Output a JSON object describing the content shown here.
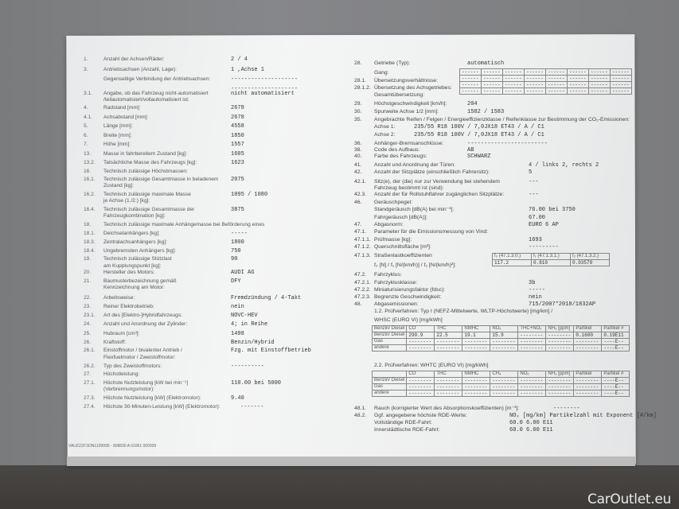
{
  "left": [
    {
      "num": "1.",
      "label": "Anzahl der Achsen/Räder:",
      "value": "2  / 4"
    },
    {
      "num": "3.",
      "label": "Antriebsachsen (Anzahl, Lage):",
      "value": "1 ,Achse 1"
    },
    {
      "num": "",
      "label": "Gegenseitige Verbindung der Antriebsachsen:",
      "value": "--------------------"
    },
    {
      "num": "",
      "label": "",
      "value": "--------------------"
    },
    {
      "num": "3.1.",
      "label": "Angabe, ob das Fahrzeug nicht-automatisiert",
      "value": "nicht automatisiert"
    },
    {
      "num": "",
      "label": "/teilautomatisiert/vollautomatisiert ist:",
      "value": ""
    },
    {
      "num": "4.",
      "label": "Radstand [mm]:",
      "value": "2678"
    },
    {
      "num": "4.1.",
      "label": "Achsabstand [mm]:",
      "value": "2678"
    },
    {
      "num": "5.",
      "label": "Länge [mm]:",
      "value": "4558"
    },
    {
      "num": "6.",
      "label": "Breite [mm]:",
      "value": "1850"
    },
    {
      "num": "7.",
      "label": "Höhe [mm]:",
      "value": "1557"
    },
    {
      "num": "13.",
      "label": "Masse in fahrbereitem Zustand [kg]:",
      "value": "1605"
    },
    {
      "num": "13.2.",
      "label": "Tatsächliche Masse des Fahrzeugs [kg]:",
      "value": "1623"
    },
    {
      "num": "16.",
      "label": "Technisch zulässige Höchstmassen:",
      "value": ""
    },
    {
      "num": "16.1.",
      "label": "Technisch zulässige Gesamtmasse in beladenem",
      "value": "2075"
    },
    {
      "num": "",
      "label": "Zustand [kg]:",
      "value": ""
    },
    {
      "num": "16.2.",
      "label": "Technisch zulässige maximale Masse",
      "value": "1095   /  1080"
    },
    {
      "num": "",
      "label": "je Achse (1./2.) [kg]:",
      "value": ""
    },
    {
      "num": "16.4.",
      "label": "Technisch zulässige Gesamtmasse der",
      "value": "3875"
    },
    {
      "num": "",
      "label": "Fahrzeugkombination [kg]:",
      "value": ""
    },
    {
      "num": "18.",
      "label": "Technisch zulässige maximale Anhängemasse bei Beförderung eines",
      "value": ""
    },
    {
      "num": "18.1.",
      "label": "Deichselanhängers [kg]:",
      "value": "-----"
    },
    {
      "num": "18.3.",
      "label": "Zentralachsanhängers [kg]:",
      "value": "1800"
    },
    {
      "num": "18.4.",
      "label": "Ungebremsten Anhängers [kg]:",
      "value": "750"
    },
    {
      "num": "19.",
      "label": "Technisch zulässige Stützlast",
      "value": "90"
    },
    {
      "num": "",
      "label": "am Kupplungspunkt [kg]:",
      "value": ""
    },
    {
      "num": "20.",
      "label": "Hersteller des Motors:",
      "value": "AUDI AG"
    },
    {
      "num": "21.",
      "label": "Baumusterbezeichnung gemäß",
      "value": "DFY"
    },
    {
      "num": "",
      "label": "Kennzeichnung am Motor:",
      "value": ""
    },
    {
      "num": "22.",
      "label": "Arbeitsweise:",
      "value": "Fremdzündung / 4-Takt"
    },
    {
      "num": "23.",
      "label": "Reiner Elektrobetrieb:",
      "value": "nein"
    },
    {
      "num": "23.1.",
      "label": "Art des [Elektro-]Hybridfahrzeugs:",
      "value": "NOVC-HEV"
    },
    {
      "num": "24.",
      "label": "Anzahl und Anordnung der Zylinder:",
      "value": "4; in Reihe"
    },
    {
      "num": "25.",
      "label": "Hubraum [cm³]:",
      "value": "1498"
    },
    {
      "num": "26.",
      "label": "Kraftstoff:",
      "value": "Benzin/Hybrid"
    },
    {
      "num": "26.1.",
      "label": "Einstoffmotor / bivalenter Antrieb /",
      "value": "Fzg. mit Einstoffbetrieb"
    },
    {
      "num": "",
      "label": "Flexfuelmotor / Zweistoffmotor:",
      "value": ""
    },
    {
      "num": "26.2.",
      "label": "Typ des Zweistoffmotors:",
      "value": "----------"
    },
    {
      "num": "27.",
      "label": "Höchstleistung:",
      "value": ""
    },
    {
      "num": "27.1.",
      "label": "Höchste Nutzleistung [kW bei min⁻¹]",
      "value": "110.00  bei 5000"
    },
    {
      "num": "",
      "label": "(Verbrennungsmotor):",
      "value": ""
    },
    {
      "num": "27.3.",
      "label": "Höchste Nutzleistung [kW] (Elektromotor):",
      "value": "9.40"
    },
    {
      "num": "27.4.",
      "label": "Höchste 30-Minuten-Leistung [kW] (Elektromotor):",
      "value": "-------"
    }
  ],
  "footer": "VAUZZZF3ON1109995 - 808830 A 01061     000009",
  "right": [
    {
      "num": "28.",
      "label": "Getriebe (Typ):",
      "value": "automatisch"
    },
    {
      "num": "",
      "label": "Gang:",
      "value": ""
    },
    {
      "num": "28.1.",
      "label": "Übersetzungsverhältnisse:",
      "value": ""
    },
    {
      "num": "28.1.2.",
      "label": "Übersetzung des Achsgetriebes:",
      "value": ""
    },
    {
      "num": "",
      "label": "Gesamtübersetzung:",
      "value": ""
    },
    {
      "num": "29.",
      "label": "Höchstgeschwindigkeit [km/h]:",
      "value": "204"
    },
    {
      "num": "30.",
      "label": "Spurweite Achse 1/2 [mm]:",
      "value": "1582   /  1583"
    },
    {
      "num": "35.",
      "label": "Angebrachte Reifen / Felgen / Energieeffizienzklasse / Reifenklasse zur Bestimmung der CO₂-Emissionen:",
      "value": ""
    },
    {
      "num": "",
      "label": "Achse 1:",
      "value": "          235/55 R18 100V            / 7,0JX18 ET43           / A   / C1"
    },
    {
      "num": "",
      "label": "Achse 2:",
      "value": "          235/55 R18 100V            / 7,0JX18 ET43           / A   / C1"
    },
    {
      "num": "36.",
      "label": "Anhänger-Bremsanschlüsse:",
      "value": "------------------------"
    },
    {
      "num": "38.",
      "label": "Code des Aufbaus:",
      "value": "AB"
    },
    {
      "num": "40.",
      "label": "Farbe des Fahrzeugs:",
      "value": "SCHWARZ"
    },
    {
      "num": "41.",
      "label": "Anzahl und Anordnung der Türen:",
      "value": "4   / links 2, rechts 2"
    },
    {
      "num": "42.",
      "label": "Anzahl der Sitzplätze (einschließlich Fahrersitz):",
      "value": "5"
    },
    {
      "num": "42.1.",
      "label": "Sitz(e), der (die) nur zur Verwendung bei stehendem",
      "value": "---"
    },
    {
      "num": "",
      "label": "Fahrzeug bestimmt ist (sind):",
      "value": ""
    },
    {
      "num": "42.3.",
      "label": "Anzahl der für Rollstuhlfahrer zugänglichen Sitzplätze:",
      "value": "---"
    },
    {
      "num": "46.",
      "label": "Geräuschpegel:",
      "value": ""
    },
    {
      "num": "",
      "label": "Standgeräusch [dB(A) bei min⁻¹]:",
      "value": "76.00  bei 3750"
    },
    {
      "num": "",
      "label": "Fahrgeräusch [dB(A)]:",
      "value": "67.00"
    },
    {
      "num": "47.",
      "label": "Abgasnorm:",
      "value": "EURO 6 AP"
    },
    {
      "num": "47.1.",
      "label": "Parameter für die Emissionsmessung von Vind:",
      "value": ""
    },
    {
      "num": "47.1.1.",
      "label": "Prüfmasse [kg]:",
      "value": "1693"
    },
    {
      "num": "47.1.2.",
      "label": "Querschnittsfläche [m²]:",
      "value": "---------"
    },
    {
      "num": "47.1.3.",
      "label": "Straßenlastkoeffizienten",
      "value": ""
    },
    {
      "num": "",
      "label": "f₀ [N] / f₁ [N/(km/h)] / f₂ [N/(km/h)²]:",
      "value": ""
    },
    {
      "num": "47.2.",
      "label": "Fahrzyklus:",
      "value": ""
    },
    {
      "num": "47.2.1.",
      "label": "Fahrzyklusklasse:",
      "value": "3b"
    },
    {
      "num": "47.2.2.",
      "label": "Miniaturisierungsfaktor (fdsc):",
      "value": "-----"
    },
    {
      "num": "47.2.3.",
      "label": "Begrenzte Geschwindigkeit:",
      "value": "nein"
    },
    {
      "num": "48.",
      "label": "Abgasemissionen:",
      "value": "715/2007*2018/1832AP"
    },
    {
      "num": "",
      "label": "1.2. Prüfverfahren:  Typ I (NEFZ-Mittelwerte, WLTP-Höchstwerte) [mg/km] /",
      "value": ""
    },
    {
      "num": "",
      "label": "                              WHSC (EURO VI) [mg/kWh]",
      "value": ""
    },
    {
      "num": "",
      "label": "2.2. Prüfverfahren:  WHTC (EURO VI) [mg/kWh]",
      "value": ""
    },
    {
      "num": "48.1.",
      "label": "Rauch (korrigierter Wert des Absorptionskoeffizienten) [m⁻¹]:",
      "value": "--------"
    },
    {
      "num": "48.2.",
      "label": "Ggf. angegebene höchste RDE-Werte:",
      "value": "NOₓ [mg/km]      Partikelzahl mit Exponent [#/km]"
    },
    {
      "num": "",
      "label": "Vollständige RDE-Fahrt:",
      "value": "60.0              6.00 E11"
    },
    {
      "num": "",
      "label": "Innerstädtische RDE-Fahrt:",
      "value": "60.0              6.00 E11"
    }
  ],
  "gear_table": {
    "cell": "------",
    "cols": 8,
    "rows": 4
  },
  "road_load": {
    "headers": [
      "f₀ (47.1.3.0.)",
      "f₁ (47.1.3.1.)",
      "f₂ (47.1.3.2.)"
    ],
    "values": [
      "117.2",
      "0.810",
      "0.03579"
    ]
  },
  "emissions_1": {
    "headers": [
      "Benzin/ Diesel",
      "CO",
      "THC",
      "NMHC",
      "NOₓ",
      "THC+NOₓ",
      "NH₃ [ppm]",
      "Partikel",
      "Partikel #"
    ],
    "rows": [
      [
        "Benzin/ Diesel",
        "290.9",
        "22.5",
        "19.1",
        "15.9",
        "--------",
        "--------",
        "0.1600",
        "0.19E11"
      ],
      [
        "Gas",
        "--------",
        "--------",
        "--------",
        "--------",
        "--------",
        "--------",
        "--------",
        "----E--"
      ],
      [
        "andere",
        "--------",
        "--------",
        "--------",
        "--------",
        "--------",
        "--------",
        "--------",
        "----E--"
      ]
    ]
  },
  "emissions_2": {
    "headers": [
      "",
      "CO",
      "THC",
      "NMHC",
      "CH₄",
      "NOₓ",
      "NH₃ [ppm]",
      "Partikel",
      "Partikel #"
    ],
    "rows": [
      [
        "Benzin/ Diesel",
        "--------",
        "--------",
        "--------",
        "--------",
        "--------",
        "--------",
        "--------",
        "----E--"
      ],
      [
        "Gas",
        "--------",
        "--------",
        "--------",
        "--------",
        "--------",
        "--------",
        "--------",
        "----E--"
      ],
      [
        "andere",
        "--------",
        "--------",
        "--------",
        "--------",
        "--------",
        "--------",
        "--------",
        "----E--"
      ]
    ]
  },
  "watermark": "CarOutlet.eu"
}
